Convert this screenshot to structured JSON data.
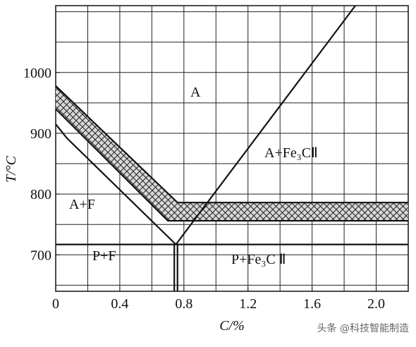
{
  "chart_data": {
    "type": "line",
    "xlabel": "C/%",
    "ylabel": "T/°C",
    "xlim": [
      0,
      2.2
    ],
    "ylim": [
      640,
      1110
    ],
    "xticks": [
      0,
      0.4,
      0.8,
      1.2,
      1.6,
      {
        "value": 2,
        "label": "2.0"
      }
    ],
    "yticks": [
      700,
      800,
      900,
      1000
    ],
    "xgrid": [
      0,
      0.2,
      0.4,
      0.6,
      0.8,
      1,
      1.2,
      1.4,
      1.6,
      1.8,
      2,
      2.2
    ],
    "ygrid": [
      650,
      700,
      750,
      800,
      850,
      900,
      950,
      1000,
      1050,
      1100
    ],
    "color": "#111111",
    "band": {
      "upper": {
        "x": [
          0,
          0.76,
          2.2
        ],
        "y": [
          978,
          786,
          786
        ]
      },
      "lower": {
        "x": [
          0,
          0.7,
          2.2
        ],
        "y": [
          940,
          756,
          756
        ]
      }
    },
    "lines": [
      {
        "x": [
          0,
          0.07,
          0.75
        ],
        "y": [
          915,
          892,
          717
        ]
      },
      {
        "x": [
          0.75,
          1.87
        ],
        "y": [
          717,
          1110
        ]
      },
      {
        "x": [
          0,
          2.2
        ],
        "y": [
          717,
          717
        ]
      },
      {
        "x": [
          0.74,
          0.74
        ],
        "y": [
          640,
          717
        ]
      },
      {
        "x": [
          0.76,
          0.76
        ],
        "y": [
          640,
          717
        ]
      }
    ],
    "annotations": [
      "A",
      "A+Fe₃CⅡ",
      "A+F",
      "P+F",
      "P+Fe₃C Ⅱ"
    ]
  },
  "watermark": "头条 @科技智能制造"
}
